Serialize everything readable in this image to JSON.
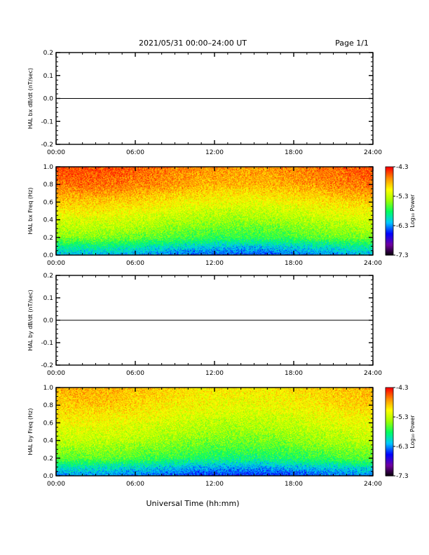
{
  "header": {
    "title": "2021/05/31  00:00–24:00 UT",
    "page": "Page 1/1"
  },
  "footer": {
    "xlabel": "Universal Time (hh:mm)"
  },
  "colors": {
    "trace": "#000000",
    "colormap": [
      "#000000",
      "#7000a0",
      "#0000ff",
      "#00c8ff",
      "#00ff60",
      "#a0ff00",
      "#ffff00",
      "#ff9000",
      "#ff0000"
    ]
  },
  "chart_data": [
    {
      "type": "line",
      "ylabel": "HAL bx dB/dt (nT/sec)",
      "xlim": [
        0,
        24
      ],
      "ylim": [
        -0.2,
        0.2
      ],
      "x_ticks": [
        "00:00",
        "06:00",
        "12:00",
        "18:00",
        "24:00"
      ],
      "y_ticks": [
        "-0.2",
        "-0.1",
        "0.0",
        "0.1",
        "0.2"
      ],
      "y_tick_values": [
        -0.2,
        -0.1,
        0.0,
        0.1,
        0.2
      ],
      "series": [
        {
          "x": [
            0,
            24
          ],
          "y": [
            0,
            0
          ]
        }
      ]
    },
    {
      "type": "heatmap",
      "ylabel": "HAL bx Freq (Hz)",
      "xlim": [
        0,
        24
      ],
      "ylim": [
        0.0,
        1.0
      ],
      "x_ticks": [
        "00:00",
        "06:00",
        "12:00",
        "18:00",
        "24:00"
      ],
      "y_ticks": [
        "0.0",
        "0.2",
        "0.4",
        "0.6",
        "0.8",
        "1.0"
      ],
      "y_tick_values": [
        0.0,
        0.2,
        0.4,
        0.6,
        0.8,
        1.0
      ],
      "colorbar": {
        "label": "Log₁₀ Power",
        "range": [
          -7.3,
          -4.3
        ],
        "ticks": [
          "-4.3",
          "-5.3",
          "-6.3",
          "-7.3"
        ],
        "tick_values": [
          -4.3,
          -5.3,
          -6.3,
          -7.3
        ]
      },
      "note_profile": {
        "freq": [
          0.0,
          0.1,
          0.2,
          0.4,
          0.6,
          0.8,
          1.0
        ],
        "log_power": [
          -6.3,
          -6.0,
          -5.6,
          -5.3,
          -5.0,
          -4.7,
          -4.6
        ]
      }
    },
    {
      "type": "line",
      "ylabel": "HAL by dB/dt (nT/sec)",
      "xlim": [
        0,
        24
      ],
      "ylim": [
        -0.2,
        0.2
      ],
      "x_ticks": [
        "00:00",
        "06:00",
        "12:00",
        "18:00",
        "24:00"
      ],
      "y_ticks": [
        "-0.2",
        "-0.1",
        "0.0",
        "0.1",
        "0.2"
      ],
      "y_tick_values": [
        -0.2,
        -0.1,
        0.0,
        0.1,
        0.2
      ],
      "series": [
        {
          "x": [
            0,
            24
          ],
          "y": [
            0,
            0
          ]
        }
      ]
    },
    {
      "type": "heatmap",
      "ylabel": "HAL by Freq (Hz)",
      "xlim": [
        0,
        24
      ],
      "ylim": [
        0.0,
        1.0
      ],
      "x_ticks": [
        "00:00",
        "06:00",
        "12:00",
        "18:00",
        "24:00"
      ],
      "y_ticks": [
        "0.0",
        "0.2",
        "0.4",
        "0.6",
        "0.8",
        "1.0"
      ],
      "y_tick_values": [
        0.0,
        0.2,
        0.4,
        0.6,
        0.8,
        1.0
      ],
      "colorbar": {
        "label": "Log₁₀ Power",
        "range": [
          -7.3,
          -4.3
        ],
        "ticks": [
          "-4.3",
          "-5.3",
          "-6.3",
          "-7.3"
        ],
        "tick_values": [
          -4.3,
          -5.3,
          -6.3,
          -7.3
        ]
      },
      "note_profile": {
        "freq": [
          0.0,
          0.1,
          0.2,
          0.4,
          0.6,
          0.8,
          1.0
        ],
        "log_power": [
          -6.4,
          -6.1,
          -5.7,
          -5.4,
          -5.2,
          -5.0,
          -4.9
        ]
      }
    }
  ]
}
